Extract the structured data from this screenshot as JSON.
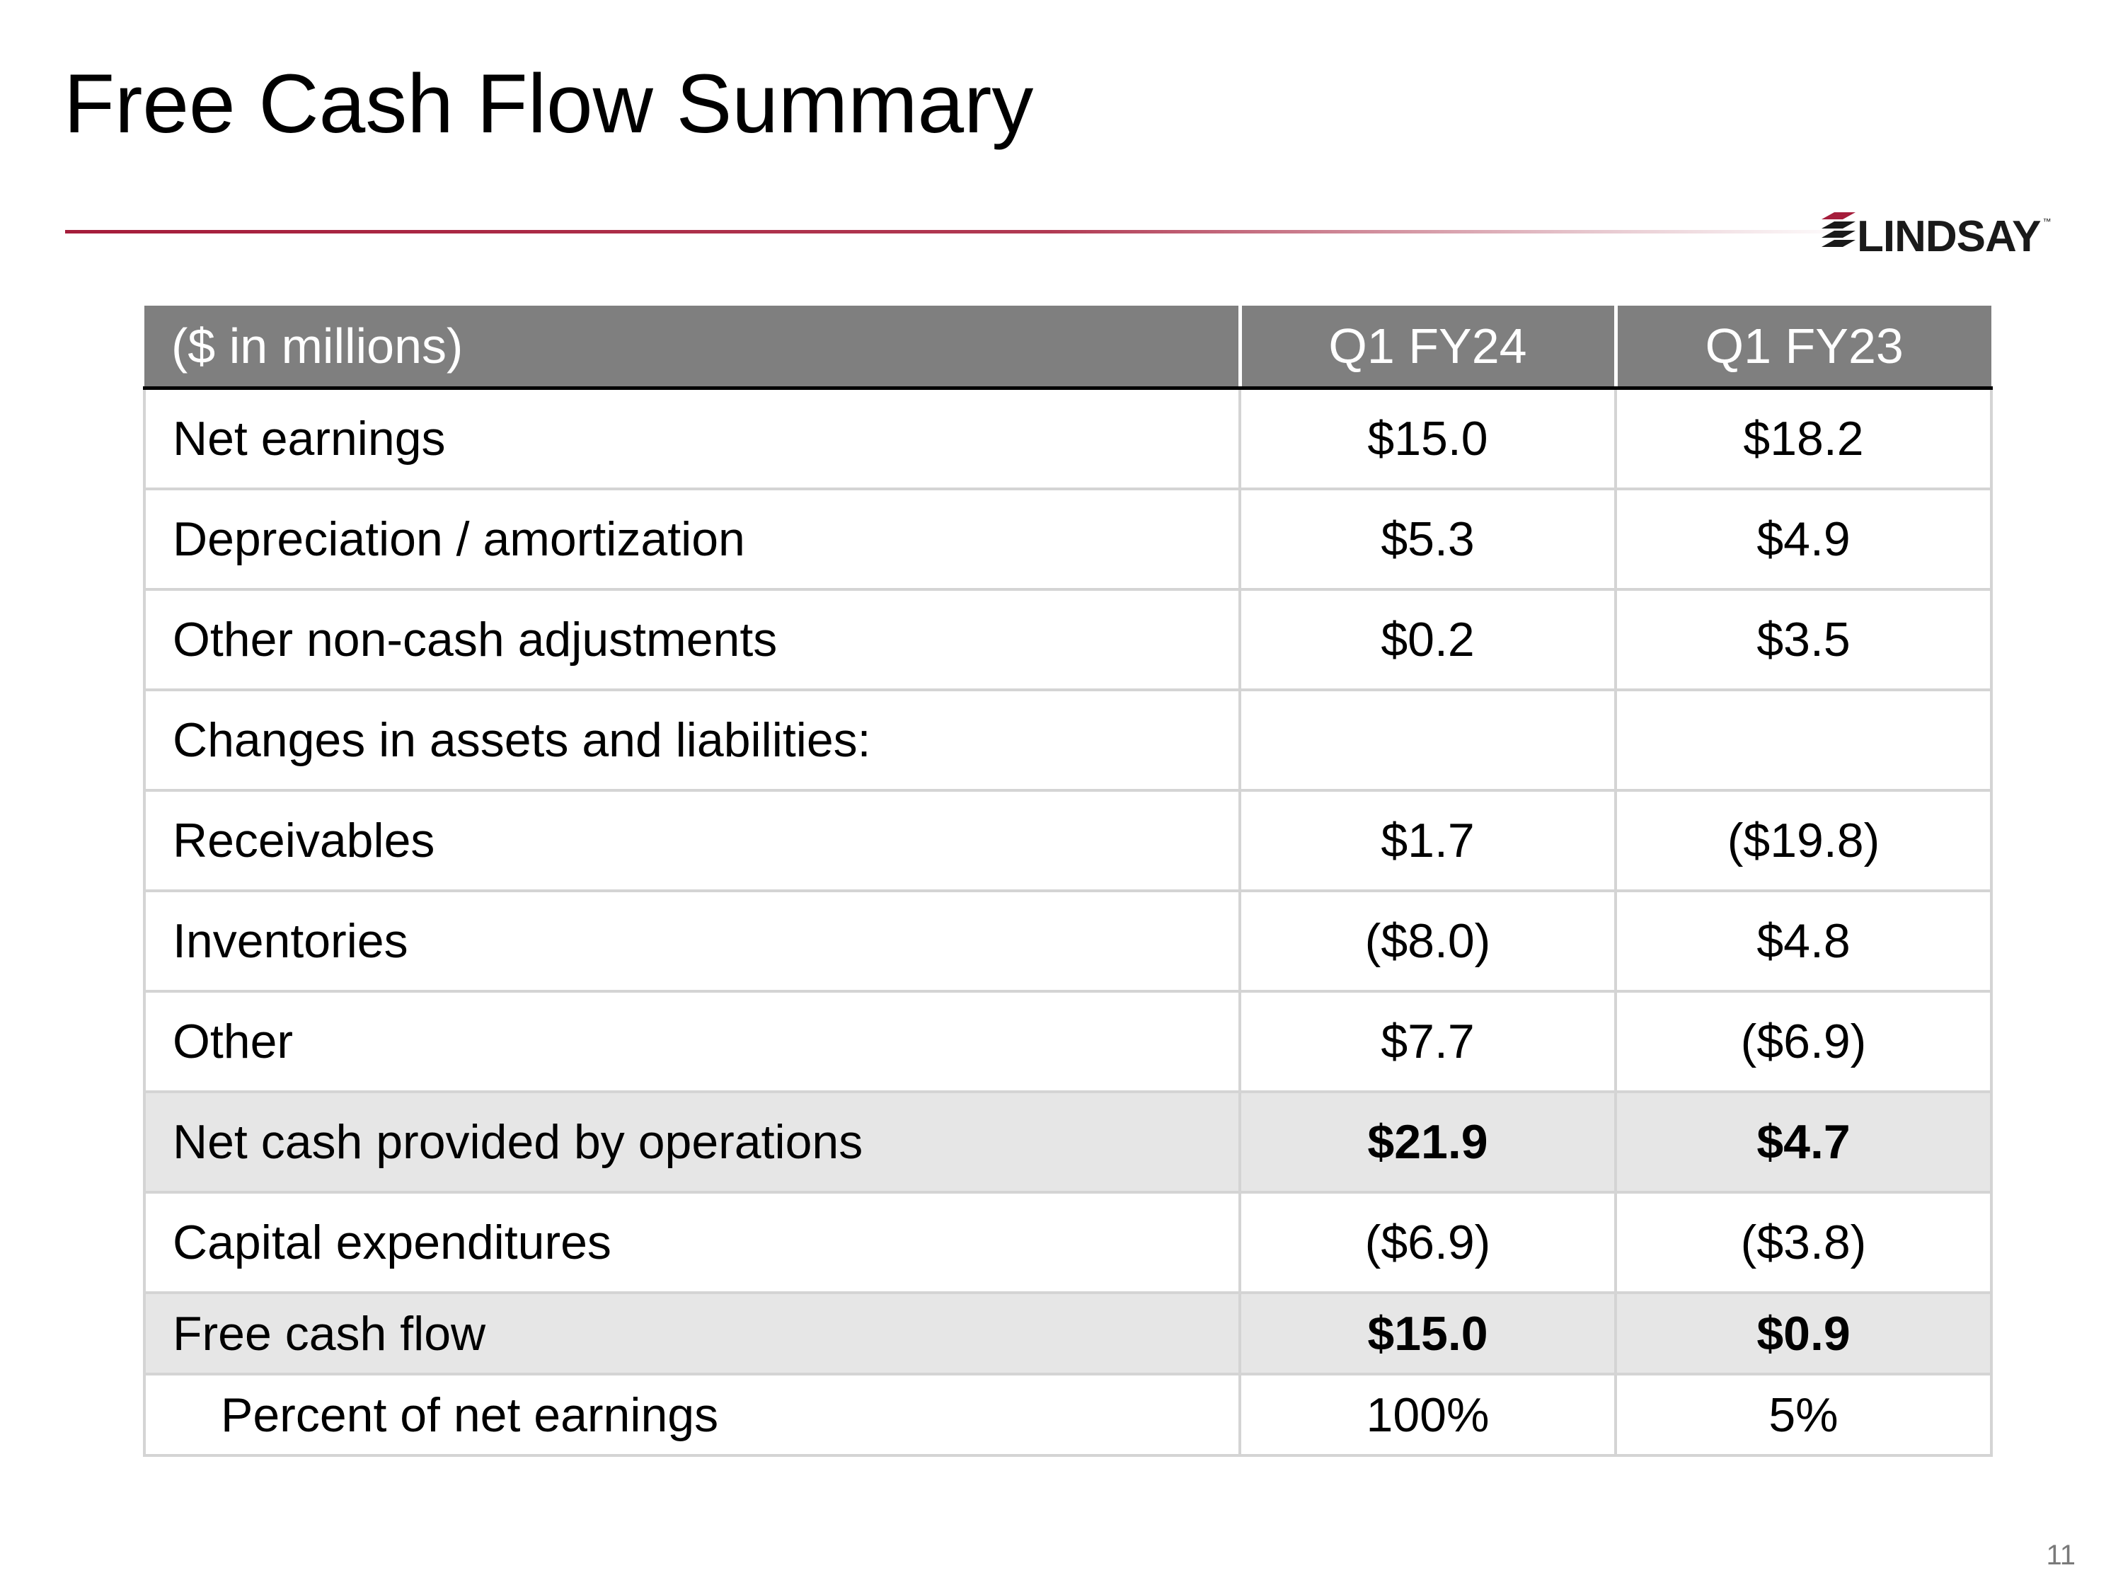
{
  "slide": {
    "title": "Free Cash Flow Summary",
    "page_number": "11",
    "logo_text": "LINDSAY",
    "logo_tm": "™",
    "accent_color": "#a51d3b"
  },
  "table": {
    "header": {
      "label": "($ in millions)",
      "q1_fy24": "Q1 FY24",
      "q1_fy23": "Q1 FY23"
    },
    "rows": [
      {
        "label": "Net earnings",
        "q1_fy24": "$15.0",
        "q1_fy23": "$18.2"
      },
      {
        "label": "Depreciation / amortization",
        "q1_fy24": "$5.3",
        "q1_fy23": "$4.9"
      },
      {
        "label": "Other non-cash adjustments",
        "q1_fy24": "$0.2",
        "q1_fy23": "$3.5"
      },
      {
        "label": "Changes in assets and liabilities:",
        "q1_fy24": "",
        "q1_fy23": ""
      },
      {
        "label": "Receivables",
        "q1_fy24": "$1.7",
        "q1_fy23": "($19.8)"
      },
      {
        "label": "Inventories",
        "q1_fy24": "($8.0)",
        "q1_fy23": "$4.8"
      },
      {
        "label": "Other",
        "q1_fy24": "$7.7",
        "q1_fy23": "($6.9)"
      },
      {
        "label": "Net cash provided by operations",
        "q1_fy24": "$21.9",
        "q1_fy23": "$4.7"
      },
      {
        "label": "Capital expenditures",
        "q1_fy24": "($6.9)",
        "q1_fy23": "($3.8)"
      },
      {
        "label": "Free cash flow",
        "q1_fy24": "$15.0",
        "q1_fy23": "$0.9"
      },
      {
        "label": "Percent of net earnings",
        "q1_fy24": "100%",
        "q1_fy23": "5%"
      }
    ]
  }
}
